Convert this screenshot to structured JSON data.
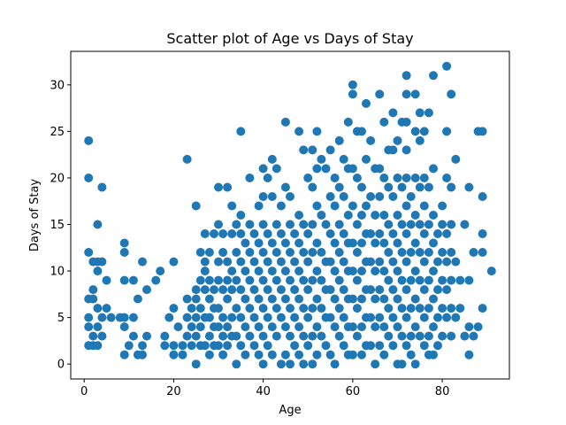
{
  "chart_data": {
    "type": "scatter",
    "title": "Scatter plot of Age vs Days of Stay",
    "xlabel": "Age",
    "ylabel": "Days of Stay",
    "xlim": [
      -3,
      95
    ],
    "ylim": [
      -1.6,
      33.6
    ],
    "xticks": [
      0,
      20,
      40,
      60,
      80
    ],
    "yticks": [
      0,
      5,
      10,
      15,
      20,
      25,
      30
    ],
    "grid": false,
    "legend": "none",
    "marker_color": "#1f77b4",
    "points": [
      [
        1,
        24
      ],
      [
        1,
        20
      ],
      [
        1,
        12
      ],
      [
        1,
        7
      ],
      [
        1,
        5
      ],
      [
        1,
        4
      ],
      [
        1,
        2
      ],
      [
        2,
        11
      ],
      [
        2,
        8
      ],
      [
        2,
        7
      ],
      [
        2,
        3
      ],
      [
        2,
        2
      ],
      [
        3,
        15
      ],
      [
        3,
        11
      ],
      [
        3,
        10
      ],
      [
        3,
        6
      ],
      [
        3,
        4
      ],
      [
        3,
        2
      ],
      [
        4,
        19
      ],
      [
        4,
        11
      ],
      [
        4,
        5
      ],
      [
        4,
        3
      ],
      [
        5,
        9
      ],
      [
        5,
        6
      ],
      [
        6,
        5
      ],
      [
        8,
        5
      ],
      [
        9,
        13
      ],
      [
        9,
        12
      ],
      [
        9,
        9
      ],
      [
        9,
        5
      ],
      [
        9,
        4
      ],
      [
        9,
        1
      ],
      [
        10,
        2
      ],
      [
        11,
        9
      ],
      [
        11,
        5
      ],
      [
        11,
        3
      ],
      [
        12,
        7
      ],
      [
        12,
        1
      ],
      [
        13,
        11
      ],
      [
        13,
        2
      ],
      [
        13,
        1
      ],
      [
        14,
        8
      ],
      [
        14,
        3
      ],
      [
        16,
        9
      ],
      [
        17,
        10
      ],
      [
        18,
        3
      ],
      [
        18,
        2
      ],
      [
        19,
        5
      ],
      [
        20,
        11
      ],
      [
        20,
        6
      ],
      [
        20,
        2
      ],
      [
        20,
        1
      ],
      [
        21,
        4
      ],
      [
        22,
        2
      ],
      [
        22,
        1
      ],
      [
        23,
        22
      ],
      [
        23,
        7
      ],
      [
        23,
        5
      ],
      [
        23,
        3
      ],
      [
        24,
        6
      ],
      [
        24,
        4
      ],
      [
        24,
        2
      ],
      [
        25,
        17
      ],
      [
        25,
        8
      ],
      [
        25,
        7
      ],
      [
        25,
        5
      ],
      [
        25,
        3
      ],
      [
        25,
        0
      ],
      [
        26,
        12
      ],
      [
        26,
        9
      ],
      [
        26,
        6
      ],
      [
        26,
        4
      ],
      [
        26,
        2
      ],
      [
        27,
        14
      ],
      [
        27,
        11
      ],
      [
        27,
        10
      ],
      [
        27,
        8
      ],
      [
        27,
        5
      ],
      [
        27,
        2
      ],
      [
        28,
        12
      ],
      [
        28,
        9
      ],
      [
        28,
        7
      ],
      [
        28,
        5
      ],
      [
        28,
        3
      ],
      [
        28,
        1
      ],
      [
        29,
        14
      ],
      [
        29,
        8
      ],
      [
        29,
        6
      ],
      [
        29,
        4
      ],
      [
        29,
        2
      ],
      [
        30,
        19
      ],
      [
        30,
        15
      ],
      [
        30,
        11
      ],
      [
        30,
        9
      ],
      [
        30,
        6
      ],
      [
        30,
        4
      ],
      [
        30,
        2
      ],
      [
        31,
        14
      ],
      [
        31,
        12
      ],
      [
        31,
        8
      ],
      [
        31,
        5
      ],
      [
        31,
        3
      ],
      [
        31,
        1
      ],
      [
        32,
        19
      ],
      [
        32,
        11
      ],
      [
        32,
        9
      ],
      [
        32,
        7
      ],
      [
        32,
        4
      ],
      [
        32,
        2
      ],
      [
        33,
        17
      ],
      [
        33,
        14
      ],
      [
        33,
        10
      ],
      [
        33,
        8
      ],
      [
        33,
        5
      ],
      [
        33,
        3
      ],
      [
        34,
        15
      ],
      [
        34,
        12
      ],
      [
        34,
        9
      ],
      [
        34,
        6
      ],
      [
        34,
        3
      ],
      [
        34,
        0
      ],
      [
        35,
        25
      ],
      [
        35,
        16
      ],
      [
        35,
        14
      ],
      [
        35,
        11
      ],
      [
        35,
        8
      ],
      [
        35,
        5
      ],
      [
        35,
        2
      ],
      [
        36,
        13
      ],
      [
        36,
        10
      ],
      [
        36,
        7
      ],
      [
        36,
        4
      ],
      [
        36,
        1
      ],
      [
        37,
        20
      ],
      [
        37,
        15
      ],
      [
        37,
        12
      ],
      [
        37,
        9
      ],
      [
        37,
        6
      ],
      [
        37,
        3
      ],
      [
        38,
        14
      ],
      [
        38,
        11
      ],
      [
        38,
        8
      ],
      [
        38,
        5
      ],
      [
        38,
        2
      ],
      [
        39,
        17
      ],
      [
        39,
        13
      ],
      [
        39,
        10
      ],
      [
        39,
        7
      ],
      [
        39,
        4
      ],
      [
        39,
        1
      ],
      [
        40,
        21
      ],
      [
        40,
        18
      ],
      [
        40,
        15
      ],
      [
        40,
        12
      ],
      [
        40,
        9
      ],
      [
        40,
        6
      ],
      [
        40,
        3
      ],
      [
        40,
        0
      ],
      [
        41,
        20
      ],
      [
        41,
        14
      ],
      [
        41,
        11
      ],
      [
        41,
        8
      ],
      [
        41,
        5
      ],
      [
        41,
        2
      ],
      [
        42,
        22
      ],
      [
        42,
        18
      ],
      [
        42,
        13
      ],
      [
        42,
        10
      ],
      [
        42,
        7
      ],
      [
        42,
        4
      ],
      [
        42,
        1
      ],
      [
        43,
        21
      ],
      [
        43,
        15
      ],
      [
        43,
        12
      ],
      [
        43,
        9
      ],
      [
        43,
        6
      ],
      [
        43,
        3
      ],
      [
        44,
        17
      ],
      [
        44,
        14
      ],
      [
        44,
        11
      ],
      [
        44,
        8
      ],
      [
        44,
        5
      ],
      [
        44,
        0
      ],
      [
        45,
        26
      ],
      [
        45,
        19
      ],
      [
        45,
        13
      ],
      [
        45,
        10
      ],
      [
        45,
        7
      ],
      [
        45,
        4
      ],
      [
        45,
        1
      ],
      [
        46,
        18
      ],
      [
        46,
        15
      ],
      [
        46,
        12
      ],
      [
        46,
        9
      ],
      [
        46,
        6
      ],
      [
        46,
        3
      ],
      [
        46,
        0
      ],
      [
        47,
        14
      ],
      [
        47,
        11
      ],
      [
        47,
        8
      ],
      [
        47,
        5
      ],
      [
        47,
        2
      ],
      [
        48,
        25
      ],
      [
        48,
        16
      ],
      [
        48,
        13
      ],
      [
        48,
        10
      ],
      [
        48,
        7
      ],
      [
        48,
        4
      ],
      [
        48,
        1
      ],
      [
        49,
        23
      ],
      [
        49,
        15
      ],
      [
        49,
        12
      ],
      [
        49,
        9
      ],
      [
        49,
        6
      ],
      [
        49,
        3
      ],
      [
        49,
        0
      ],
      [
        50,
        20
      ],
      [
        50,
        14
      ],
      [
        50,
        11
      ],
      [
        50,
        8
      ],
      [
        50,
        5
      ],
      [
        50,
        2
      ],
      [
        51,
        23
      ],
      [
        51,
        19
      ],
      [
        51,
        15
      ],
      [
        51,
        12
      ],
      [
        51,
        9
      ],
      [
        51,
        6
      ],
      [
        51,
        3
      ],
      [
        51,
        0
      ],
      [
        52,
        25
      ],
      [
        52,
        21
      ],
      [
        52,
        17
      ],
      [
        52,
        13
      ],
      [
        52,
        10
      ],
      [
        52,
        7
      ],
      [
        52,
        4
      ],
      [
        52,
        1
      ],
      [
        53,
        22
      ],
      [
        53,
        16
      ],
      [
        53,
        12
      ],
      [
        53,
        9
      ],
      [
        53,
        6
      ],
      [
        53,
        3
      ],
      [
        54,
        21
      ],
      [
        54,
        15
      ],
      [
        54,
        11
      ],
      [
        54,
        8
      ],
      [
        54,
        5
      ],
      [
        54,
        2
      ],
      [
        55,
        23
      ],
      [
        55,
        18
      ],
      [
        55,
        14
      ],
      [
        55,
        11
      ],
      [
        55,
        8
      ],
      [
        55,
        5
      ],
      [
        55,
        1
      ],
      [
        56,
        20
      ],
      [
        56,
        17
      ],
      [
        56,
        13
      ],
      [
        56,
        10
      ],
      [
        56,
        7
      ],
      [
        56,
        4
      ],
      [
        56,
        0
      ],
      [
        57,
        24
      ],
      [
        57,
        19
      ],
      [
        57,
        15
      ],
      [
        57,
        12
      ],
      [
        57,
        9
      ],
      [
        57,
        6
      ],
      [
        57,
        3
      ],
      [
        58,
        22
      ],
      [
        58,
        18
      ],
      [
        58,
        14
      ],
      [
        58,
        11
      ],
      [
        58,
        8
      ],
      [
        58,
        5
      ],
      [
        58,
        2
      ],
      [
        59,
        26
      ],
      [
        59,
        21
      ],
      [
        59,
        16
      ],
      [
        59,
        13
      ],
      [
        59,
        10
      ],
      [
        59,
        7
      ],
      [
        59,
        4
      ],
      [
        59,
        1
      ],
      [
        60,
        30
      ],
      [
        60,
        29
      ],
      [
        60,
        21
      ],
      [
        60,
        17
      ],
      [
        60,
        13
      ],
      [
        60,
        10
      ],
      [
        60,
        7
      ],
      [
        60,
        4
      ],
      [
        60,
        1
      ],
      [
        61,
        25
      ],
      [
        61,
        20
      ],
      [
        61,
        15
      ],
      [
        61,
        12
      ],
      [
        61,
        9
      ],
      [
        61,
        6
      ],
      [
        61,
        3
      ],
      [
        62,
        25
      ],
      [
        62,
        19
      ],
      [
        62,
        16
      ],
      [
        62,
        13
      ],
      [
        62,
        10
      ],
      [
        62,
        7
      ],
      [
        62,
        4
      ],
      [
        62,
        1
      ],
      [
        63,
        28
      ],
      [
        63,
        22
      ],
      [
        63,
        17
      ],
      [
        63,
        14
      ],
      [
        63,
        11
      ],
      [
        63,
        8
      ],
      [
        63,
        5
      ],
      [
        63,
        2
      ],
      [
        64,
        24
      ],
      [
        64,
        18
      ],
      [
        64,
        14
      ],
      [
        64,
        11
      ],
      [
        64,
        8
      ],
      [
        64,
        5
      ],
      [
        64,
        2
      ],
      [
        65,
        21
      ],
      [
        65,
        16
      ],
      [
        65,
        13
      ],
      [
        65,
        10
      ],
      [
        65,
        7
      ],
      [
        65,
        4
      ],
      [
        65,
        0
      ],
      [
        66,
        29
      ],
      [
        66,
        21
      ],
      [
        66,
        18
      ],
      [
        66,
        14
      ],
      [
        66,
        11
      ],
      [
        66,
        8
      ],
      [
        66,
        5
      ],
      [
        66,
        2
      ],
      [
        67,
        26
      ],
      [
        67,
        20
      ],
      [
        67,
        16
      ],
      [
        67,
        13
      ],
      [
        67,
        10
      ],
      [
        67,
        7
      ],
      [
        67,
        4
      ],
      [
        67,
        1
      ],
      [
        68,
        23
      ],
      [
        68,
        19
      ],
      [
        68,
        15
      ],
      [
        68,
        12
      ],
      [
        68,
        9
      ],
      [
        68,
        6
      ],
      [
        68,
        3
      ],
      [
        69,
        27
      ],
      [
        69,
        23
      ],
      [
        69,
        18
      ],
      [
        69,
        14
      ],
      [
        69,
        11
      ],
      [
        69,
        8
      ],
      [
        69,
        5
      ],
      [
        69,
        2
      ],
      [
        70,
        24
      ],
      [
        70,
        20
      ],
      [
        70,
        16
      ],
      [
        70,
        13
      ],
      [
        70,
        10
      ],
      [
        70,
        7
      ],
      [
        70,
        4
      ],
      [
        70,
        0
      ],
      [
        71,
        26
      ],
      [
        71,
        19
      ],
      [
        71,
        15
      ],
      [
        71,
        12
      ],
      [
        71,
        9
      ],
      [
        71,
        6
      ],
      [
        71,
        3
      ],
      [
        71,
        0
      ],
      [
        72,
        31
      ],
      [
        72,
        29
      ],
      [
        72,
        26
      ],
      [
        72,
        23
      ],
      [
        72,
        20
      ],
      [
        72,
        17
      ],
      [
        72,
        14
      ],
      [
        72,
        11
      ],
      [
        72,
        8
      ],
      [
        72,
        5
      ],
      [
        72,
        2
      ],
      [
        73,
        18
      ],
      [
        73,
        15
      ],
      [
        73,
        12
      ],
      [
        73,
        9
      ],
      [
        73,
        6
      ],
      [
        73,
        3
      ],
      [
        73,
        1
      ],
      [
        74,
        29
      ],
      [
        74,
        25
      ],
      [
        74,
        20
      ],
      [
        74,
        16
      ],
      [
        74,
        13
      ],
      [
        74,
        10
      ],
      [
        74,
        7
      ],
      [
        74,
        4
      ],
      [
        74,
        0
      ],
      [
        75,
        27
      ],
      [
        75,
        24
      ],
      [
        75,
        19
      ],
      [
        75,
        15
      ],
      [
        75,
        12
      ],
      [
        75,
        9
      ],
      [
        75,
        6
      ],
      [
        75,
        3
      ],
      [
        76,
        25
      ],
      [
        76,
        20
      ],
      [
        76,
        17
      ],
      [
        76,
        14
      ],
      [
        76,
        11
      ],
      [
        76,
        8
      ],
      [
        76,
        5
      ],
      [
        76,
        2
      ],
      [
        77,
        27
      ],
      [
        77,
        19
      ],
      [
        77,
        15
      ],
      [
        77,
        12
      ],
      [
        77,
        9
      ],
      [
        77,
        6
      ],
      [
        77,
        3
      ],
      [
        77,
        1
      ],
      [
        78,
        31
      ],
      [
        78,
        21
      ],
      [
        78,
        16
      ],
      [
        78,
        13
      ],
      [
        78,
        10
      ],
      [
        78,
        7
      ],
      [
        78,
        4
      ],
      [
        78,
        1
      ],
      [
        79,
        14
      ],
      [
        79,
        11
      ],
      [
        79,
        8
      ],
      [
        79,
        5
      ],
      [
        79,
        2
      ],
      [
        80,
        17
      ],
      [
        80,
        15
      ],
      [
        80,
        12
      ],
      [
        80,
        9
      ],
      [
        80,
        6
      ],
      [
        80,
        3
      ],
      [
        81,
        32
      ],
      [
        81,
        25
      ],
      [
        81,
        20
      ],
      [
        81,
        14
      ],
      [
        81,
        11
      ],
      [
        81,
        8
      ],
      [
        81,
        5
      ],
      [
        82,
        29
      ],
      [
        82,
        19
      ],
      [
        82,
        15
      ],
      [
        82,
        12
      ],
      [
        82,
        9
      ],
      [
        82,
        6
      ],
      [
        82,
        3
      ],
      [
        83,
        22
      ],
      [
        83,
        11
      ],
      [
        83,
        5
      ],
      [
        84,
        9
      ],
      [
        84,
        6
      ],
      [
        85,
        15
      ],
      [
        85,
        3
      ],
      [
        86,
        19
      ],
      [
        86,
        9
      ],
      [
        86,
        4
      ],
      [
        86,
        1
      ],
      [
        87,
        12
      ],
      [
        87,
        3
      ],
      [
        88,
        25
      ],
      [
        88,
        4
      ],
      [
        89,
        25
      ],
      [
        89,
        18
      ],
      [
        89,
        14
      ],
      [
        89,
        12
      ],
      [
        89,
        6
      ],
      [
        91,
        10
      ]
    ]
  }
}
